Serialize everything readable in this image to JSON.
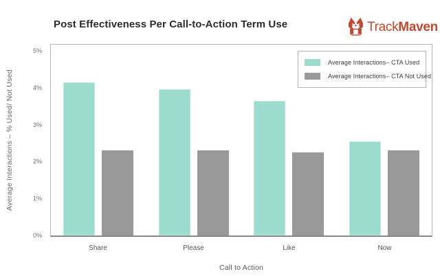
{
  "logo": {
    "brand_track": "Track",
    "brand_maven": "Maven",
    "icon": "corgi-dog-icon",
    "brand_color": "#c4492f"
  },
  "chart_data": {
    "type": "bar",
    "title": "Post Effectiveness Per Call-to-Action Term Use",
    "categories": [
      "Share",
      "Please",
      "Like",
      "Now"
    ],
    "series": [
      {
        "name": "Average Interactions– CTA Used",
        "color": "#9cdccf",
        "values": [
          4.15,
          3.95,
          3.65,
          2.55
        ]
      },
      {
        "name": "Average Interactions– CTA Not Used",
        "color": "#999999",
        "values": [
          2.3,
          2.3,
          2.25,
          2.3
        ]
      }
    ],
    "xlabel": "Call to Action",
    "ylabel": "Average Interactions – % Used/ Not Used",
    "ylim": [
      0,
      5
    ],
    "yticks": [
      "0%",
      "1%",
      "2%",
      "3%",
      "4%",
      "5%"
    ],
    "grid": false,
    "legend_position": "top-right",
    "value_unit": "percent"
  }
}
